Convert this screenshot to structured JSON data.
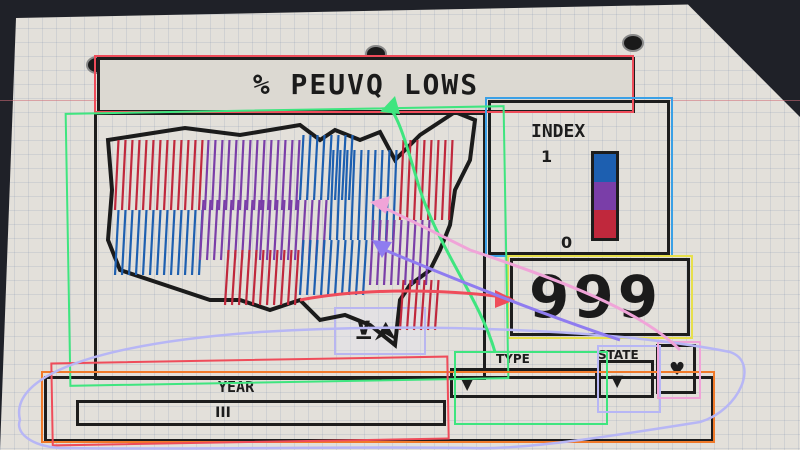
{
  "title": "% PEUVQ LOWS",
  "index_panel": {
    "label": "INDEX",
    "top_value": "1",
    "bottom_value": "0"
  },
  "value_display": "999",
  "zoom_label": "⊻⮝",
  "year_slider": {
    "label": "YEAR",
    "handle": "III"
  },
  "dropdown_1": {
    "label": "TYPE",
    "selected_arrow": "▼"
  },
  "dropdown_2": {
    "label": "STATE",
    "selected_arrow": "▼"
  },
  "heart_button": {
    "icon": "♥"
  },
  "colors": {
    "map_red": "#c0283c",
    "map_purple": "#7a3ea8",
    "map_blue": "#1d5fb0",
    "annotation_red": "#ef4c5a",
    "annotation_green": "#3fe57f",
    "annotation_blue": "#3aa0e6",
    "annotation_yellow": "#e7e04a",
    "annotation_lavender": "#b7b6f5",
    "annotation_pink": "#f0a4d8",
    "annotation_orange": "#f07a2a"
  }
}
